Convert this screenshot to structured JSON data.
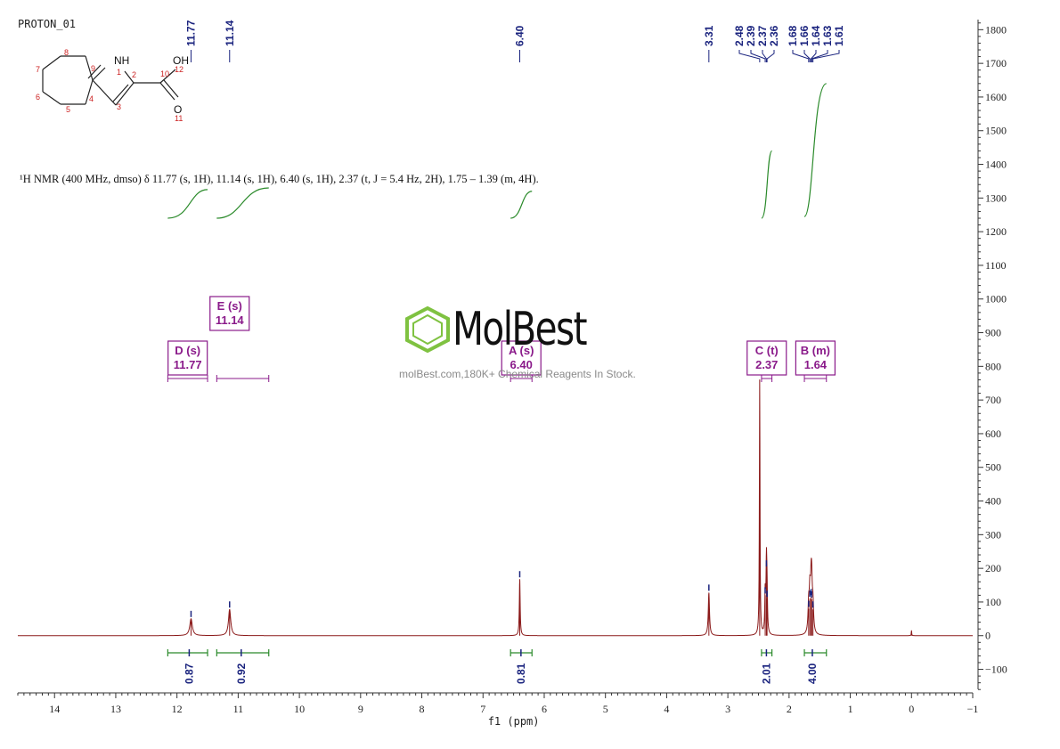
{
  "spectrum_label": "PROTON_01",
  "nmr_description": "¹H NMR (400 MHz, dmso) δ 11.77 (s, 1H), 11.14 (s, 1H), 6.40 (s, 1H), 2.37 (t, J = 5.4 Hz, 2H), 1.75 – 1.39 (m, 4H).",
  "watermark": {
    "brand": "MolBest",
    "tagline": "molBest.com,180K+ Chemical Reagents In Stock.",
    "logo_icon": "benzene-ring-icon",
    "logo_color": "#7fc241"
  },
  "molecule": {
    "atom_labels": [
      "NH",
      "OH",
      "O"
    ],
    "atom_numbers": [
      "1",
      "2",
      "3",
      "4",
      "5",
      "6",
      "7",
      "8",
      "9",
      "10",
      "11",
      "12"
    ]
  },
  "colors": {
    "spectrum": "#8b1a1a",
    "integral": "#2a8a2a",
    "peak_label": "#1a237e",
    "multiplet_box": "#8a1a8a",
    "axis": "#333333"
  },
  "chart_data": {
    "type": "line",
    "xlabel": "f1 (ppm)",
    "x_axis": {
      "min": -1,
      "max": 14.6,
      "reversed": true,
      "ticks": [
        "14",
        "13",
        "12",
        "11",
        "10",
        "9",
        "8",
        "7",
        "6",
        "5",
        "4",
        "3",
        "2",
        "1",
        "0",
        "−1"
      ],
      "tick_values": [
        14,
        13,
        12,
        11,
        10,
        9,
        8,
        7,
        6,
        5,
        4,
        3,
        2,
        1,
        0,
        -1
      ]
    },
    "y_axis": {
      "min": -170,
      "max": 1830,
      "side": "right",
      "ticks": [
        "1800",
        "1700",
        "1600",
        "1500",
        "1400",
        "1300",
        "1200",
        "1100",
        "1000",
        "900",
        "800",
        "700",
        "600",
        "500",
        "400",
        "300",
        "200",
        "100",
        "0",
        "−100"
      ],
      "tick_values": [
        1800,
        1700,
        1600,
        1500,
        1400,
        1300,
        1200,
        1100,
        1000,
        900,
        800,
        700,
        600,
        500,
        400,
        300,
        200,
        100,
        0,
        -100
      ]
    },
    "peaks": [
      {
        "ppm": 11.77,
        "height": 50,
        "width": 0.025
      },
      {
        "ppm": 11.14,
        "height": 78,
        "width": 0.022
      },
      {
        "ppm": 6.4,
        "height": 168,
        "width": 0.008
      },
      {
        "ppm": 3.31,
        "height": 128,
        "width": 0.012
      },
      {
        "ppm": 2.48,
        "height": 760,
        "width": 0.006
      },
      {
        "ppm": 2.39,
        "height": 120,
        "width": 0.008
      },
      {
        "ppm": 2.37,
        "height": 200,
        "width": 0.008
      },
      {
        "ppm": 2.36,
        "height": 110,
        "width": 0.008
      },
      {
        "ppm": 1.68,
        "height": 80,
        "width": 0.012
      },
      {
        "ppm": 1.66,
        "height": 110,
        "width": 0.012
      },
      {
        "ppm": 1.64,
        "height": 115,
        "width": 0.012
      },
      {
        "ppm": 1.63,
        "height": 108,
        "width": 0.012
      },
      {
        "ppm": 1.61,
        "height": 78,
        "width": 0.012
      },
      {
        "ppm": 0.0,
        "height": 16,
        "width": 0.004
      }
    ],
    "peak_labels": [
      "11.77",
      "11.14",
      "6.40",
      "3.31",
      "2.48",
      "2.39",
      "2.37",
      "2.36",
      "1.68",
      "1.66",
      "1.64",
      "1.63",
      "1.61"
    ],
    "peak_label_ppm": [
      11.77,
      11.14,
      6.4,
      3.31,
      2.48,
      2.39,
      2.37,
      2.36,
      1.68,
      1.66,
      1.64,
      1.63,
      1.61
    ],
    "multiplets": [
      {
        "label": "D (s)",
        "value": "11.77",
        "from": 12.15,
        "to": 11.5
      },
      {
        "label": "E (s)",
        "value": "11.14",
        "from": 11.35,
        "to": 10.5
      },
      {
        "label": "A (s)",
        "value": "6.40",
        "from": 6.55,
        "to": 6.2
      },
      {
        "label": "C (t)",
        "value": "2.37",
        "from": 2.45,
        "to": 2.28
      },
      {
        "label": "B (m)",
        "value": "1.64",
        "from": 1.75,
        "to": 1.39
      }
    ],
    "integrals": [
      {
        "value": "0.87",
        "from": 12.15,
        "to": 11.5,
        "center": 11.8,
        "rise_y": [
          1240,
          1325
        ]
      },
      {
        "value": "0.92",
        "from": 11.35,
        "to": 10.5,
        "center": 10.95,
        "rise_y": [
          1240,
          1330
        ]
      },
      {
        "value": "0.81",
        "from": 6.55,
        "to": 6.2,
        "center": 6.38,
        "rise_y": [
          1240,
          1320
        ]
      },
      {
        "value": "2.01",
        "from": 2.45,
        "to": 2.28,
        "center": 2.37,
        "rise_y": [
          1240,
          1440
        ]
      },
      {
        "value": "4.00",
        "from": 1.75,
        "to": 1.39,
        "center": 1.62,
        "rise_y": [
          1245,
          1640
        ]
      }
    ]
  }
}
